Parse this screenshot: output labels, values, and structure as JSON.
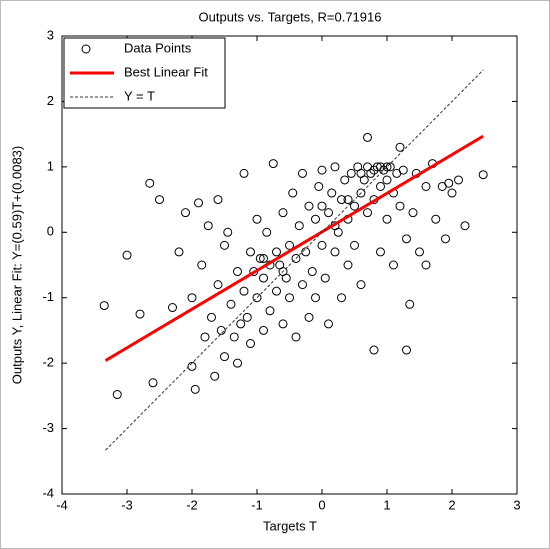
{
  "chart_data": {
    "type": "scatter",
    "title": "Outputs vs. Targets, R=0.71916",
    "xlabel": "Targets T",
    "ylabel": "Outputs Y,  Linear Fit: Y=(0.59)T+(0.0083)",
    "xlim": [
      -4,
      3
    ],
    "ylim": [
      -4,
      3
    ],
    "xticks": [
      -4,
      -3,
      -2,
      -1,
      0,
      1,
      2,
      3
    ],
    "yticks": [
      -4,
      -3,
      -2,
      -1,
      0,
      1,
      2,
      3
    ],
    "grid": false,
    "legend": "northwest",
    "series": [
      {
        "name": "Data Points",
        "color": "#000000",
        "mode": "markers",
        "x": [
          -3.35,
          -3.15,
          -3.0,
          -2.8,
          -2.65,
          -2.6,
          -2.5,
          -2.3,
          -2.2,
          -2.1,
          -2.0,
          -2.0,
          -1.95,
          -1.9,
          -1.85,
          -1.8,
          -1.75,
          -1.7,
          -1.65,
          -1.6,
          -1.6,
          -1.55,
          -1.5,
          -1.5,
          -1.45,
          -1.4,
          -1.35,
          -1.3,
          -1.3,
          -1.25,
          -1.2,
          -1.2,
          -1.15,
          -1.1,
          -1.1,
          -1.05,
          -1.0,
          -1.0,
          -0.95,
          -0.9,
          -0.9,
          -0.85,
          -0.8,
          -0.8,
          -0.75,
          -0.7,
          -0.7,
          -0.65,
          -0.6,
          -0.6,
          -0.55,
          -0.5,
          -0.5,
          -0.45,
          -0.4,
          -0.4,
          -0.35,
          -0.3,
          -0.3,
          -0.25,
          -0.2,
          -0.2,
          -0.15,
          -0.1,
          -0.1,
          -0.05,
          0.0,
          0.0,
          0.05,
          0.1,
          0.1,
          0.15,
          0.2,
          0.2,
          0.25,
          0.3,
          0.3,
          0.35,
          0.4,
          0.4,
          0.45,
          0.5,
          0.5,
          0.55,
          0.6,
          0.6,
          0.65,
          0.7,
          0.7,
          0.75,
          0.8,
          0.8,
          0.85,
          0.9,
          0.9,
          0.95,
          1.0,
          1.0,
          1.05,
          1.1,
          1.1,
          1.15,
          1.2,
          1.2,
          1.25,
          1.3,
          1.3,
          1.35,
          1.4,
          1.45,
          1.5,
          1.6,
          1.6,
          1.7,
          1.75,
          1.85,
          1.9,
          1.95,
          2.0,
          2.1,
          2.2,
          2.48,
          0.6,
          0.7,
          0.8,
          0.9,
          1.0,
          0.4,
          -0.6,
          -0.9,
          0.2,
          0.0
        ],
        "values": [
          -1.12,
          -2.48,
          -0.35,
          -1.25,
          0.75,
          -2.3,
          0.5,
          -1.15,
          -0.3,
          0.3,
          -1.0,
          -2.05,
          -2.4,
          0.45,
          -0.5,
          -1.6,
          0.1,
          -1.3,
          -2.2,
          0.5,
          -0.8,
          -1.5,
          -0.2,
          -1.9,
          0.0,
          -1.1,
          -1.6,
          -0.6,
          -2.0,
          -1.4,
          0.9,
          -0.9,
          -1.3,
          -0.3,
          -1.7,
          -0.6,
          0.2,
          -1.0,
          -0.4,
          -1.5,
          -0.7,
          0.0,
          -0.5,
          -1.2,
          1.05,
          -0.3,
          -0.9,
          -0.5,
          -1.4,
          0.3,
          -0.7,
          -0.2,
          -1.0,
          0.6,
          -0.4,
          -1.6,
          0.1,
          -0.8,
          0.9,
          -0.3,
          -1.3,
          0.4,
          -0.6,
          0.2,
          -1.0,
          0.7,
          -0.2,
          0.95,
          -0.7,
          0.3,
          -1.4,
          0.6,
          -0.3,
          1.0,
          0.0,
          0.5,
          -1.0,
          0.8,
          0.2,
          -0.5,
          0.9,
          0.4,
          -0.2,
          1.0,
          0.6,
          -0.8,
          0.8,
          0.3,
          1.45,
          0.9,
          0.5,
          -1.8,
          1.0,
          0.7,
          -0.3,
          0.95,
          0.8,
          0.2,
          1.0,
          0.6,
          -0.5,
          0.9,
          0.4,
          1.3,
          0.95,
          -0.1,
          -1.8,
          -1.1,
          0.3,
          0.9,
          -0.3,
          0.7,
          -0.5,
          1.05,
          0.2,
          0.7,
          -0.1,
          0.75,
          0.6,
          0.8,
          0.1,
          0.88,
          0.9,
          1.0,
          0.95,
          1.0,
          1.0,
          0.5,
          -0.6,
          -0.4,
          0.1,
          0.4
        ]
      },
      {
        "name": "Best Linear Fit",
        "color": "#ff0000",
        "mode": "line",
        "x": [
          -3.33,
          2.48
        ],
        "values": [
          -1.96,
          1.47
        ]
      },
      {
        "name": "Y = T",
        "color": "#333333",
        "mode": "dashed",
        "x": [
          -3.33,
          2.48
        ],
        "values": [
          -3.33,
          2.48
        ]
      }
    ]
  }
}
